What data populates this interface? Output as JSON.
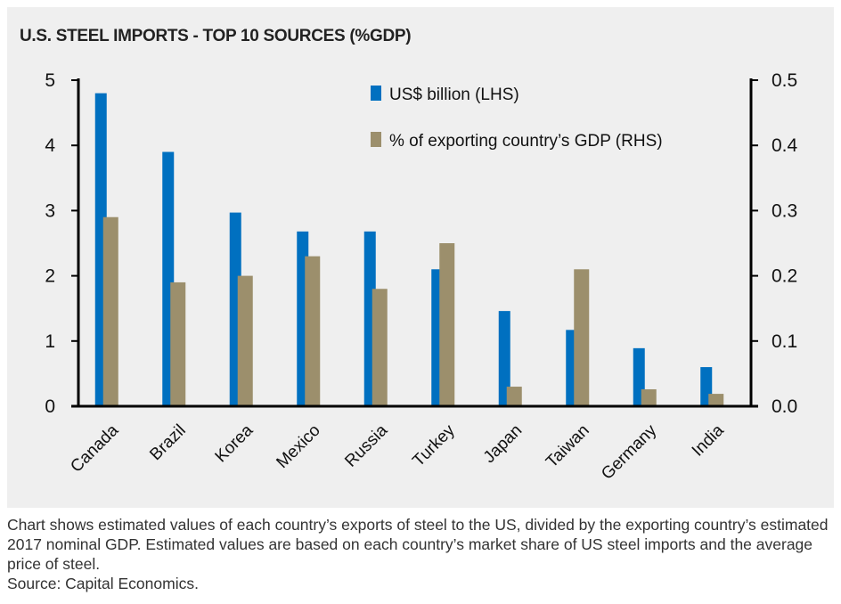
{
  "chart_data": {
    "type": "bar",
    "title": "U.S. STEEL IMPORTS - TOP 10 SOURCES (%GDP)",
    "categories": [
      "Canada",
      "Brazil",
      "Korea",
      "Mexico",
      "Russia",
      "Turkey",
      "Japan",
      "Taiwan",
      "Germany",
      "India"
    ],
    "series": [
      {
        "name": "US$ billion (LHS)",
        "axis": "left",
        "color": "#0070c0",
        "values": [
          4.8,
          3.9,
          2.97,
          2.68,
          2.68,
          2.1,
          1.46,
          1.17,
          0.89,
          0.6
        ]
      },
      {
        "name": "% of exporting country’s GDP (RHS)",
        "axis": "right",
        "color": "#9c8f6c",
        "values": [
          0.29,
          0.19,
          0.2,
          0.23,
          0.18,
          0.25,
          0.03,
          0.21,
          0.026,
          0.019
        ]
      }
    ],
    "ylim": [
      0,
      5
    ],
    "y2lim": [
      0,
      0.5
    ],
    "yticks": [
      "0",
      "1",
      "2",
      "3",
      "4",
      "5"
    ],
    "y2ticks": [
      "0.0",
      "0.1",
      "0.2",
      "0.3",
      "0.4",
      "0.5"
    ],
    "legend": "top-center"
  },
  "caption": {
    "text": "Chart shows estimated values of each country’s exports of steel to the US, divided by the exporting country’s estimated 2017 nominal GDP.  Estimated values are based on each country’s market share of US steel imports and the average price of steel.",
    "source": "Source: Capital Economics."
  }
}
